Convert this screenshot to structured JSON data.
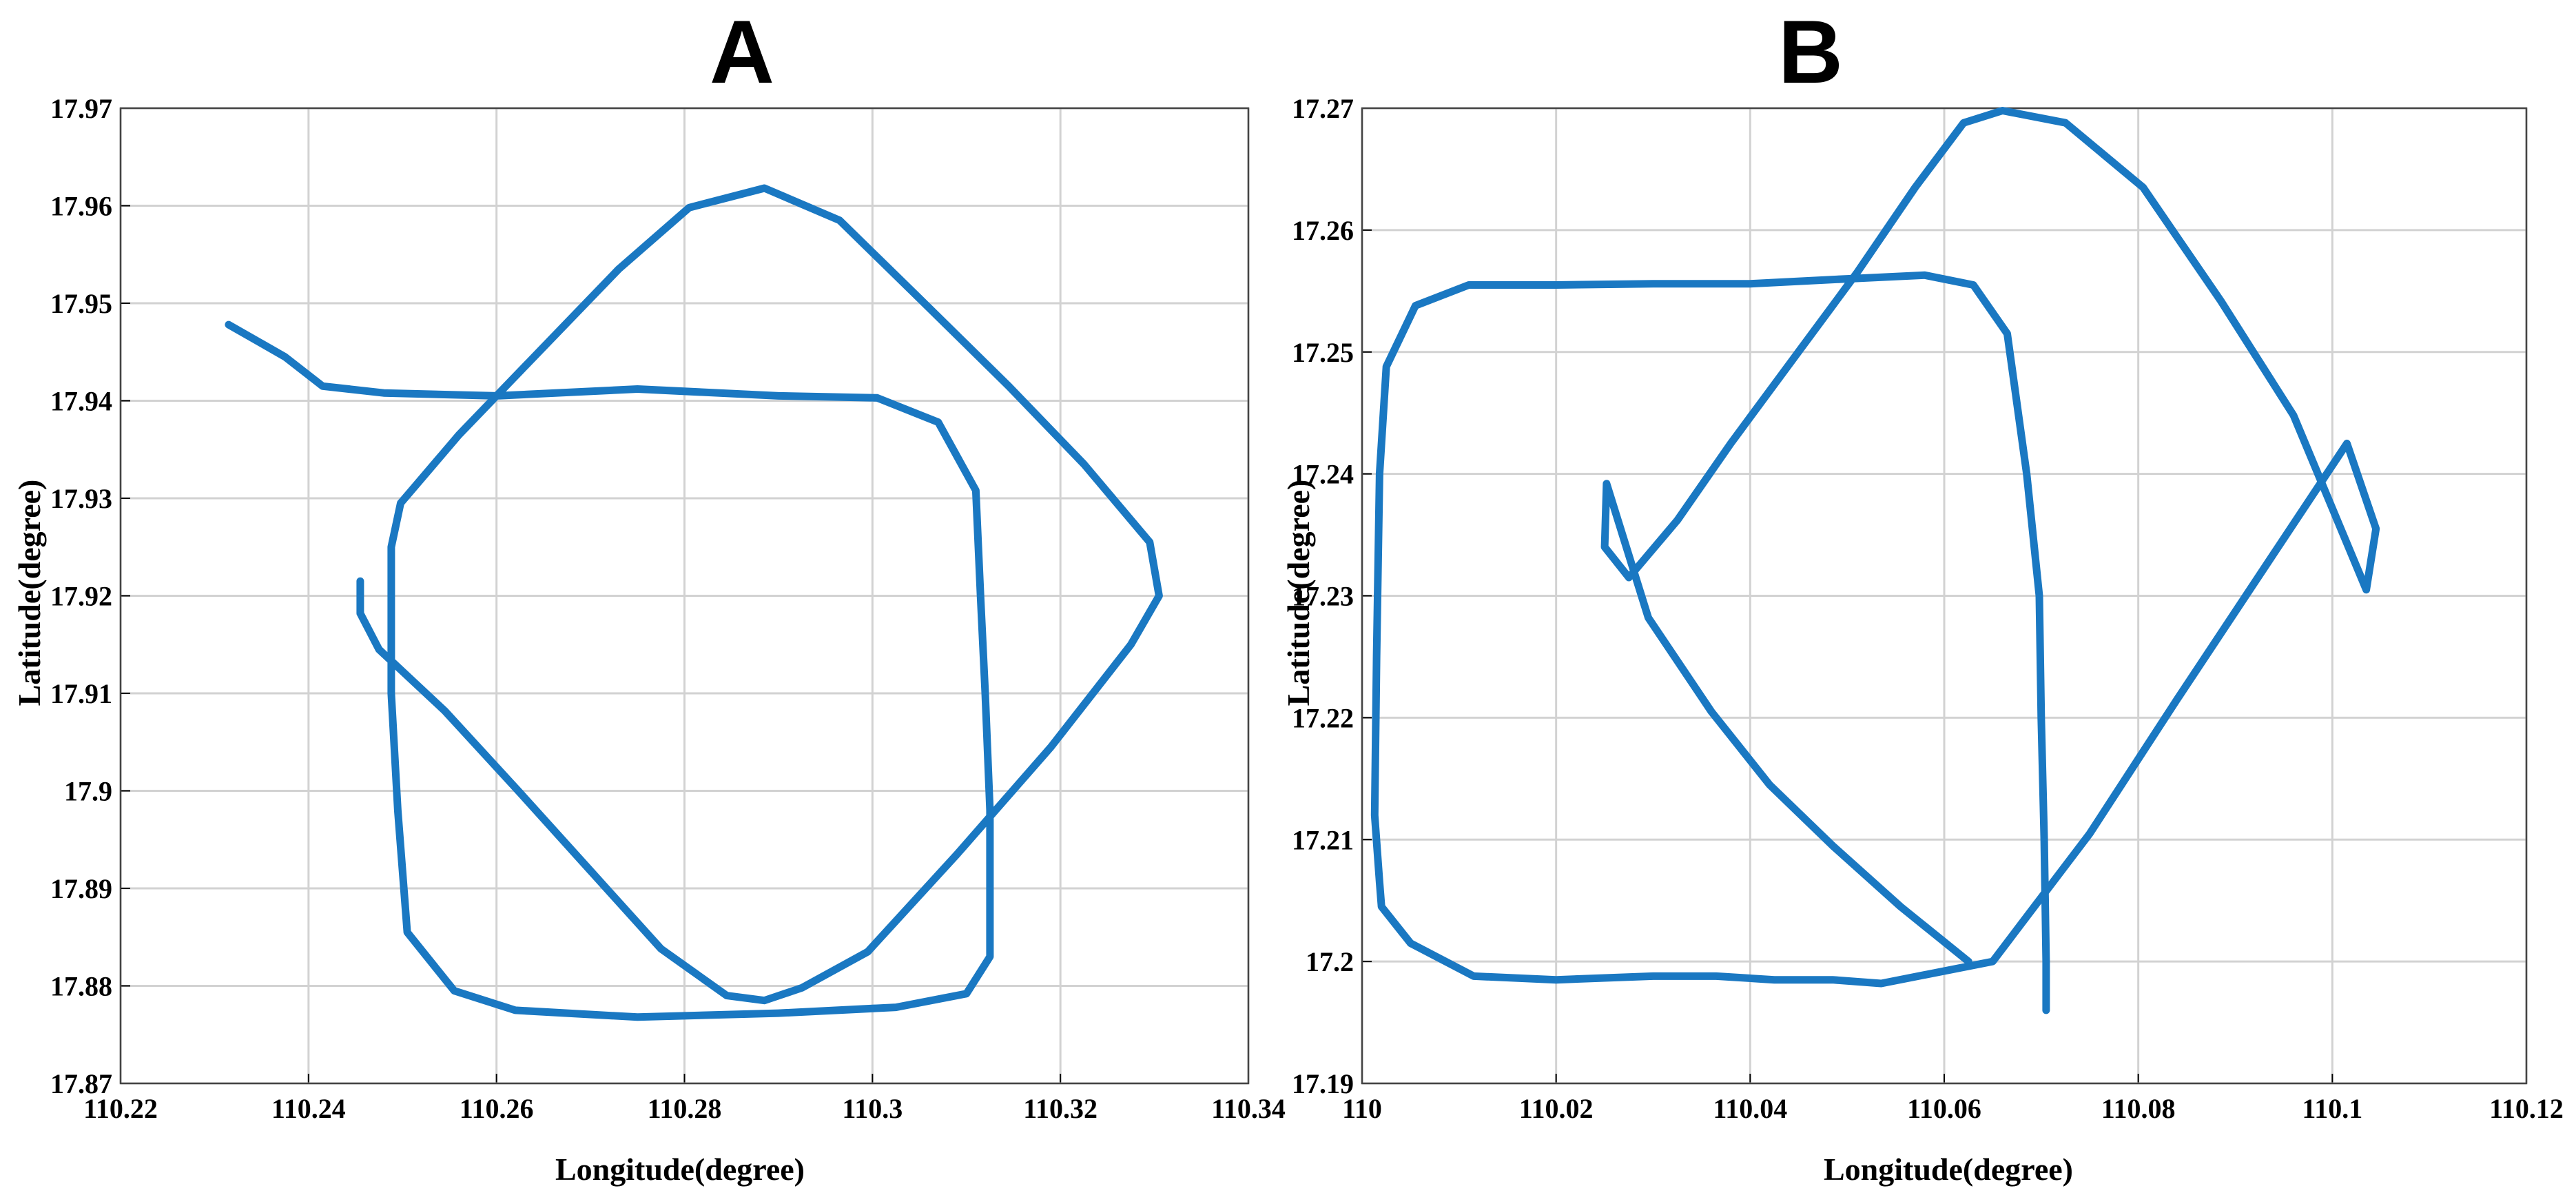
{
  "chart_data": [
    {
      "type": "line",
      "title": "A",
      "xlabel": "Longitude(degree)",
      "ylabel": "Latitude(degree)",
      "xlim": [
        110.22,
        110.34
      ],
      "ylim": [
        17.87,
        17.97
      ],
      "xticks": [
        "110.22",
        "110.24",
        "110.26",
        "110.28",
        "110.3",
        "110.32",
        "110.34"
      ],
      "yticks": [
        "17.87",
        "17.88",
        "17.89",
        "17.9",
        "17.91",
        "17.92",
        "17.93",
        "17.94",
        "17.95",
        "17.96",
        "17.97"
      ],
      "grid": true,
      "line_color": "#1a78c2",
      "series": [
        {
          "x": [
            110.2315,
            110.2375,
            110.2415,
            110.248,
            110.26,
            110.275,
            110.29,
            110.3005,
            110.307,
            110.311,
            110.3115,
            110.312,
            110.3125,
            110.3125,
            110.31,
            110.3025,
            110.29,
            110.275,
            110.262,
            110.2555,
            110.2505,
            110.2495,
            110.2488,
            110.2488,
            110.2498,
            110.256,
            110.264,
            110.273,
            110.2805,
            110.2885,
            110.2965,
            110.305,
            110.3145,
            110.3225,
            110.3295,
            110.3305,
            110.3275,
            110.319,
            110.309,
            110.2995,
            110.2925,
            110.2885,
            110.2845,
            110.2775,
            110.27,
            110.2625,
            110.2545,
            110.2475,
            110.2455,
            110.2455
          ],
          "y": [
            17.9478,
            17.9445,
            17.9415,
            17.9408,
            17.9405,
            17.9412,
            17.9405,
            17.9403,
            17.9378,
            17.9308,
            17.92,
            17.91,
            17.898,
            17.883,
            17.8792,
            17.8778,
            17.8772,
            17.8768,
            17.8775,
            17.8795,
            17.8855,
            17.898,
            17.91,
            17.925,
            17.9295,
            17.9365,
            17.9445,
            17.9535,
            17.9598,
            17.9618,
            17.9585,
            17.9505,
            17.9415,
            17.9335,
            17.9255,
            17.92,
            17.915,
            17.9045,
            17.8935,
            17.8835,
            17.8798,
            17.8785,
            17.879,
            17.8838,
            17.8918,
            17.8998,
            17.9082,
            17.9145,
            17.9182,
            17.9215
          ]
        }
      ]
    },
    {
      "type": "line",
      "title": "B",
      "xlabel": "Longitude(degree)",
      "ylabel": "Latitude(degree)",
      "xlim": [
        110,
        110.12
      ],
      "ylim": [
        17.19,
        17.27
      ],
      "xticks": [
        "110",
        "110.02",
        "110.04",
        "110.06",
        "110.08",
        "110.1",
        "110.12"
      ],
      "yticks": [
        "17.19",
        "17.2",
        "17.21",
        "17.22",
        "17.23",
        "17.24",
        "17.25",
        "17.26",
        "17.27"
      ],
      "grid": true,
      "line_color": "#1a78c2",
      "series": [
        {
          "x": [
            110.0705,
            110.0705,
            110.0703,
            110.07,
            110.0698,
            110.0685,
            110.0665,
            110.063,
            110.058,
            110.05,
            110.04,
            110.03,
            110.02,
            110.011,
            110.0055,
            110.0025,
            110.0018,
            110.0015,
            110.0013,
            110.0018,
            110.002,
            110.005,
            110.0115,
            110.02,
            110.03,
            110.0365,
            110.0425,
            110.0485,
            110.0535,
            110.065,
            110.075,
            110.084,
            110.094,
            110.1015,
            110.1045,
            110.1035,
            110.096,
            110.0885,
            110.0805,
            110.0725,
            110.066,
            110.062,
            110.057,
            110.051,
            110.0445,
            110.038,
            110.0325,
            110.0275,
            110.025,
            110.0252,
            110.0295,
            110.036,
            110.042,
            110.0485,
            110.0555,
            110.0625
          ],
          "y": [
            17.196,
            17.2,
            17.21,
            17.22,
            17.23,
            17.24,
            17.2515,
            17.2555,
            17.2563,
            17.256,
            17.2556,
            17.2556,
            17.2555,
            17.2555,
            17.2538,
            17.2488,
            17.24,
            17.225,
            17.212,
            17.2065,
            17.2045,
            17.2015,
            17.1988,
            17.1985,
            17.1988,
            17.1988,
            17.1985,
            17.1985,
            17.1982,
            17.2,
            17.2105,
            17.2215,
            17.2335,
            17.2425,
            17.2355,
            17.2305,
            17.2448,
            17.2542,
            17.2635,
            17.2688,
            17.2698,
            17.2688,
            17.2635,
            17.2565,
            17.2495,
            17.2425,
            17.2362,
            17.2315,
            17.234,
            17.2392,
            17.2282,
            17.2205,
            17.2145,
            17.2095,
            17.2045,
            17.2
          ]
        }
      ]
    }
  ]
}
